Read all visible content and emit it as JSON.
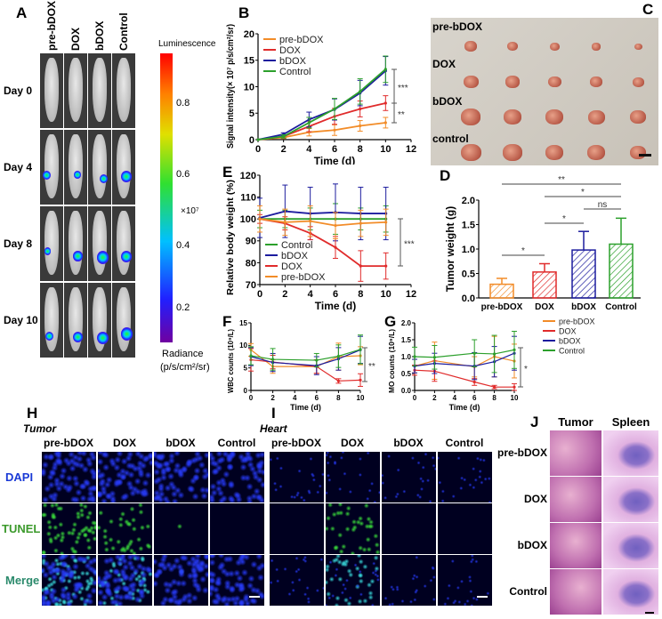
{
  "colors": {
    "pre-bDOX": "#f28c28",
    "DOX": "#e02b2b",
    "bDOX": "#1c1c9e",
    "Control": "#2ca02c"
  },
  "panelA": {
    "label": "A",
    "groups": [
      "pre-bDOX",
      "DOX",
      "bDOX",
      "Control"
    ],
    "days": [
      "Day 0",
      "Day 4",
      "Day 8",
      "Day 10"
    ],
    "colorbar_title": "Luminescence",
    "colorbar_ticks": [
      "0.8",
      "0.6",
      "0.4",
      "0.2"
    ],
    "colorbar_scale": "×10⁷",
    "colorbar_unit": "Radiance",
    "colorbar_unit2": "(p/s/cm²/sr)"
  },
  "panelC": {
    "label": "C",
    "rows": [
      "pre-bDOX",
      "DOX",
      "bDOX",
      "control"
    ]
  },
  "panelH": {
    "label": "H",
    "tissue": "Tumor",
    "groups": [
      "pre-bDOX",
      "DOX",
      "bDOX",
      "Control"
    ],
    "rows": [
      "DAPI",
      "TUNEL",
      "Merge"
    ]
  },
  "panelI": {
    "label": "I",
    "tissue": "Heart",
    "groups": [
      "pre-bDOX",
      "DOX",
      "bDOX",
      "Control"
    ]
  },
  "panelJ": {
    "label": "J",
    "cols": [
      "Tumor",
      "Spleen"
    ],
    "rows": [
      "pre-bDOX",
      "DOX",
      "bDOX",
      "Control"
    ]
  },
  "chart_data": [
    {
      "id": "B",
      "label": "B",
      "type": "line",
      "xlabel": "Time (d)",
      "ylabel": "Signal intensity(× 10⁷ p/s/cm²/sr)",
      "xlim": [
        0,
        12
      ],
      "ylim": [
        0,
        20
      ],
      "xticks": [
        0,
        2,
        4,
        6,
        8,
        10,
        12
      ],
      "yticks": [
        0,
        5,
        10,
        15,
        20
      ],
      "legend": "top-left",
      "x": [
        0,
        2,
        4,
        6,
        8,
        10
      ],
      "series": [
        {
          "name": "pre-bDOX",
          "values": [
            0,
            0.4,
            1.4,
            1.8,
            2.6,
            3.2
          ],
          "err": [
            0,
            0.2,
            0.7,
            1.0,
            1.0,
            1.0
          ]
        },
        {
          "name": "DOX",
          "values": [
            0,
            0.6,
            2.5,
            4.4,
            5.8,
            6.9
          ],
          "err": [
            0,
            0.3,
            1.0,
            1.5,
            1.5,
            1.4
          ]
        },
        {
          "name": "bDOX",
          "values": [
            0,
            1.0,
            3.8,
            5.7,
            8.8,
            13.0
          ],
          "err": [
            0,
            0.3,
            1.4,
            2.0,
            2.4,
            2.7
          ]
        },
        {
          "name": "Control",
          "values": [
            0,
            0.6,
            3.2,
            5.8,
            9.1,
            13.3
          ],
          "err": [
            0,
            0.3,
            1.0,
            2.0,
            2.4,
            2.5
          ]
        }
      ],
      "annotations": [
        {
          "text": "***",
          "between": [
            "bDOX",
            "DOX"
          ]
        },
        {
          "text": "**",
          "between": [
            "DOX",
            "pre-bDOX"
          ]
        }
      ]
    },
    {
      "id": "D",
      "label": "D",
      "type": "bar",
      "ylabel": "Tumor weight (g)",
      "ylim": [
        0,
        2.0
      ],
      "yticks": [
        "0.0",
        "0.5",
        "1.0",
        "1.5",
        "2.0"
      ],
      "categories": [
        "pre-bDOX",
        "DOX",
        "bDOX",
        "Control"
      ],
      "values": [
        0.28,
        0.53,
        0.98,
        1.1
      ],
      "err": [
        0.12,
        0.17,
        0.38,
        0.53
      ],
      "annotations": [
        {
          "text": "**",
          "from": 0,
          "to": 3
        },
        {
          "text": "*",
          "from": 1,
          "to": 3
        },
        {
          "text": "ns",
          "from": 2,
          "to": 3
        },
        {
          "text": "*",
          "from": 1,
          "to": 2
        },
        {
          "text": "*",
          "from": 0,
          "to": 1
        }
      ]
    },
    {
      "id": "E",
      "label": "E",
      "type": "line",
      "xlabel": "Time (d)",
      "ylabel": "Relative body weight (%)",
      "xlim": [
        0,
        12
      ],
      "ylim": [
        70,
        120
      ],
      "xticks": [
        0,
        2,
        4,
        6,
        8,
        10,
        12
      ],
      "yticks": [
        70,
        80,
        90,
        100,
        110,
        120
      ],
      "legend": "bottom-left",
      "x": [
        0,
        2,
        4,
        6,
        8,
        10
      ],
      "series": [
        {
          "name": "Control",
          "values": [
            100,
            100,
            100,
            100,
            100,
            100
          ],
          "err": [
            4,
            4,
            5,
            7,
            5,
            6
          ]
        },
        {
          "name": "bDOX",
          "values": [
            100.5,
            103.5,
            102.5,
            103,
            102.5,
            102.5
          ],
          "err": [
            9,
            12,
            12,
            13,
            12,
            12
          ]
        },
        {
          "name": "DOX",
          "values": [
            100,
            98,
            93.5,
            87,
            78.5,
            78.5
          ],
          "err": [
            2,
            3,
            3,
            5,
            7,
            6
          ]
        },
        {
          "name": "pre-bDOX",
          "values": [
            100,
            98.5,
            99,
            97,
            98,
            98.5
          ],
          "err": [
            6,
            6,
            7,
            6,
            6,
            6
          ]
        }
      ],
      "annotations": [
        {
          "text": "***",
          "between": [
            "bDOX",
            "DOX"
          ]
        }
      ]
    },
    {
      "id": "F",
      "label": "F",
      "type": "line",
      "xlabel": "Time (d)",
      "ylabel": "WBC counts (10⁹/L)",
      "xlim": [
        0,
        10
      ],
      "ylim": [
        0,
        15
      ],
      "xticks": [
        0,
        2,
        4,
        6,
        8,
        10
      ],
      "yticks": [
        0,
        5,
        10,
        15
      ],
      "x": [
        0,
        2,
        6,
        8,
        10
      ],
      "series": [
        {
          "name": "pre-bDOX",
          "values": [
            9.0,
            5.3,
            5.3,
            7.5,
            7.7
          ],
          "err": [
            1.4,
            1.5,
            1.5,
            3,
            2
          ]
        },
        {
          "name": "DOX",
          "values": [
            6.8,
            6.3,
            5.3,
            2.1,
            2.3
          ],
          "err": [
            2.5,
            1.5,
            1.5,
            0.5,
            1.4
          ]
        },
        {
          "name": "bDOX",
          "values": [
            7.5,
            6.2,
            5.5,
            7.0,
            9.0
          ],
          "err": [
            2,
            2,
            2,
            2.5,
            3
          ]
        },
        {
          "name": "Control",
          "values": [
            7.7,
            6.9,
            6.7,
            7.6,
            9.1
          ],
          "err": [
            2,
            2.4,
            1.5,
            2.5,
            3.2
          ]
        }
      ],
      "annotations": [
        {
          "text": "**"
        }
      ]
    },
    {
      "id": "G",
      "label": "G",
      "type": "line",
      "xlabel": "Time (d)",
      "ylabel": "MO counts (10⁹/L)",
      "xlim": [
        0,
        10
      ],
      "ylim": [
        0,
        2.0
      ],
      "xticks": [
        0,
        2,
        4,
        6,
        8,
        10
      ],
      "yticks": [
        "0.0",
        "0.5",
        "1.0",
        "1.5",
        "2.0"
      ],
      "legend": "right",
      "x": [
        0,
        2,
        6,
        8,
        10
      ],
      "series": [
        {
          "name": "pre-bDOX",
          "values": [
            0.72,
            0.88,
            0.7,
            1.0,
            0.87
          ],
          "err": [
            0.2,
            0.55,
            0.3,
            0.6,
            0.5
          ]
        },
        {
          "name": "DOX",
          "values": [
            0.6,
            0.57,
            0.25,
            0.1,
            0.1
          ],
          "err": [
            0.15,
            0.3,
            0.1,
            0.05,
            0.1
          ]
        },
        {
          "name": "bDOX",
          "values": [
            0.72,
            0.8,
            0.72,
            0.85,
            1.1
          ],
          "err": [
            0.2,
            0.3,
            0.4,
            0.45,
            0.5
          ]
        },
        {
          "name": "Control",
          "values": [
            1.0,
            0.98,
            1.1,
            1.08,
            1.2
          ],
          "err": [
            0.28,
            0.35,
            0.4,
            0.55,
            0.55
          ]
        }
      ],
      "annotations": [
        {
          "text": "*"
        }
      ]
    }
  ]
}
